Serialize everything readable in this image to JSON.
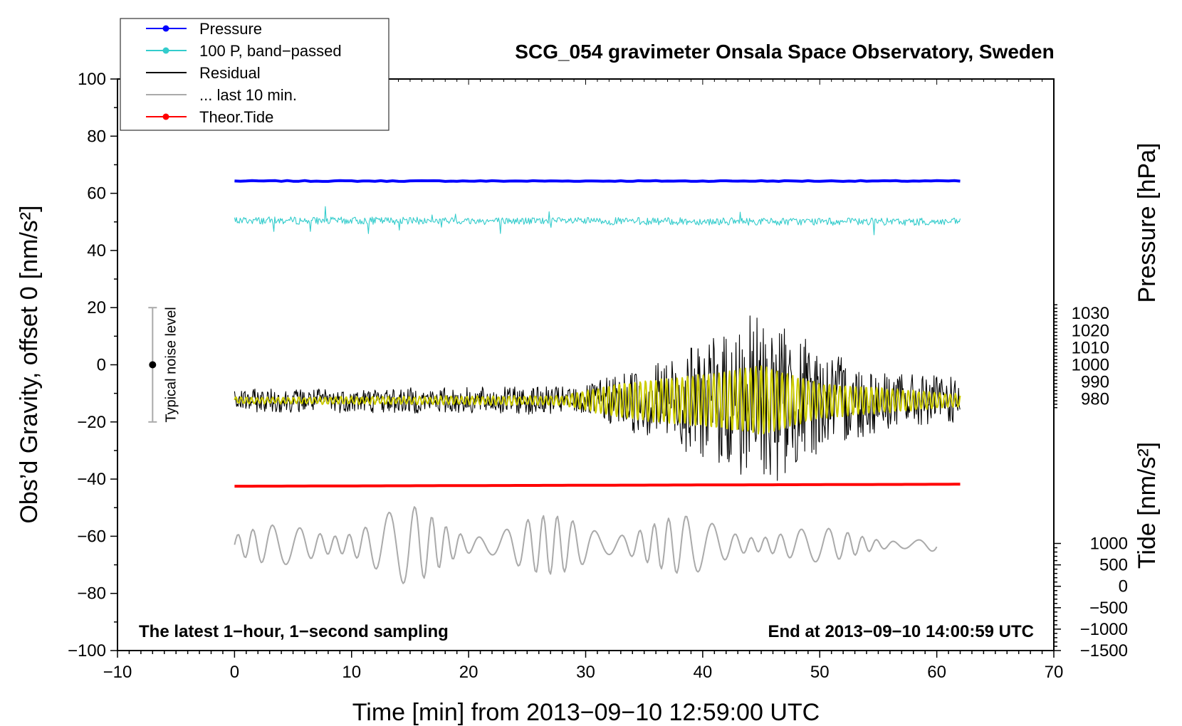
{
  "chart_data": {
    "type": "line",
    "title": "SCG_054 gravimeter Onsala Space Observatory, Sweden",
    "xlabel": "Time [min] from 2013−09−10 12:59:00 UTC",
    "ylabel_main": "Obs’d Gravity, offset 0",
    "ylabel_main_unit": "[nm/s²]",
    "ylabel_pressure": "Pressure [hPa]",
    "ylabel_tide": "Tide [nm/s²]",
    "xlim": [
      -10,
      70
    ],
    "ylim": [
      -100,
      100
    ],
    "xticks": [
      -10,
      0,
      10,
      20,
      30,
      40,
      50,
      60,
      70
    ],
    "xtick_labels": [
      "−10",
      "0",
      "10",
      "20",
      "30",
      "40",
      "50",
      "60",
      "70"
    ],
    "yticks": [
      -100,
      -80,
      -60,
      -40,
      -20,
      0,
      20,
      40,
      60,
      80,
      100
    ],
    "ytick_labels": [
      "−100",
      "−80",
      "−60",
      "−40",
      "−20",
      "0",
      "20",
      "40",
      "60",
      "80",
      "100"
    ],
    "pressure_axis": {
      "ticks": [
        980,
        990,
        1000,
        1010,
        1020,
        1030
      ],
      "tick_labels": [
        "980",
        "990",
        "1000",
        "1010",
        "1020",
        "1030"
      ],
      "main_ref": [
        0,
        1000,
        0.6,
        10
      ]
    },
    "tide_axis": {
      "ticks": [
        -1500,
        -1000,
        -500,
        0,
        500,
        1000
      ],
      "tick_labels": [
        "−1500",
        "−1000",
        "−500",
        "0",
        "500",
        "1000"
      ],
      "main_ref": [
        -100,
        -1500,
        1000,
        66.7
      ]
    },
    "legend": [
      {
        "label": "Pressure",
        "color": "#0000ff",
        "marker": true
      },
      {
        "label": "100 P, band−passed",
        "color": "#33cccc",
        "marker": true
      },
      {
        "label": "Residual",
        "color": "#000000",
        "marker": false
      },
      {
        "label": "... last 10 min.",
        "color": "#aaaaaa",
        "marker": false
      },
      {
        "label": "Theor.Tide",
        "color": "#ff0000",
        "marker": true
      }
    ],
    "series": [
      {
        "name": "Pressure",
        "color": "#0000ff",
        "x_range": [
          0,
          62
        ],
        "y_start": 64.3,
        "y_end": 64.3
      },
      {
        "name": "100 P, band−passed",
        "color": "#33cccc",
        "x_range": [
          0,
          62
        ],
        "y_start": 50.5,
        "y_end": 50.0
      },
      {
        "name": "Residual",
        "color": "#000000",
        "x_range": [
          0,
          62
        ],
        "y_center": -12.5,
        "envelope": [
          [
            0,
            4
          ],
          [
            30,
            5
          ],
          [
            33,
            10
          ],
          [
            40,
            20
          ],
          [
            44,
            30
          ],
          [
            46,
            30
          ],
          [
            50,
            18
          ],
          [
            56,
            10
          ],
          [
            62,
            8
          ]
        ]
      },
      {
        "name": "Residual filtered",
        "color": "#cccc00",
        "x_range": [
          0,
          62
        ],
        "y_center": -12.5,
        "envelope": [
          [
            0,
            1
          ],
          [
            28,
            1.5
          ],
          [
            33,
            6
          ],
          [
            40,
            9
          ],
          [
            45,
            12
          ],
          [
            50,
            6
          ],
          [
            62,
            2
          ]
        ]
      },
      {
        "name": "... last 10 min.",
        "color": "#aaaaaa",
        "x_range": [
          0,
          60
        ],
        "y_center": -63,
        "envelope": [
          [
            0,
            5
          ],
          [
            15,
            14
          ],
          [
            20,
            9
          ],
          [
            30,
            11
          ],
          [
            40,
            10
          ],
          [
            50,
            6
          ],
          [
            60,
            3
          ]
        ]
      },
      {
        "name": "Theor.Tide",
        "color": "#ff0000",
        "x_range": [
          0,
          62
        ],
        "y_start": -42.5,
        "y_end": -41.8
      }
    ],
    "noise_bar": {
      "label": "Typical noise level",
      "x": -7,
      "y": 0,
      "err": 20
    },
    "annotations": {
      "left": "The latest 1−hour, 1−second sampling",
      "right": "End at 2013−09−10 14:00:59 UTC"
    }
  }
}
